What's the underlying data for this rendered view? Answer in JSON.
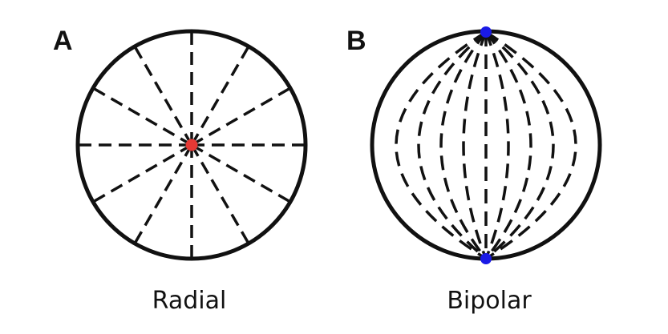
{
  "panels": [
    {
      "letter": "A",
      "caption": "Radial",
      "center_dot_color": "#e53935",
      "spoke_count": 12
    },
    {
      "letter": "B",
      "caption": "Bipolar",
      "pole_dot_color": "#1a1ae6",
      "meridian_count": 9
    }
  ],
  "colors": {
    "stroke": "#111111",
    "background": "#ffffff"
  }
}
